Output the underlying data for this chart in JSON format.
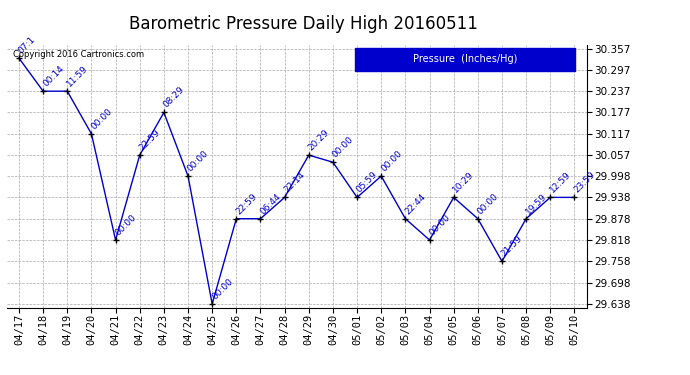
{
  "title": "Barometric Pressure Daily High 20160511",
  "copyright": "Copyright 2016 Cartronics.com",
  "legend_label": "Pressure  (Inches/Hg)",
  "x_labels": [
    "04/17",
    "04/18",
    "04/19",
    "04/20",
    "04/21",
    "04/22",
    "04/23",
    "04/24",
    "04/25",
    "04/26",
    "04/27",
    "04/28",
    "04/29",
    "04/30",
    "05/01",
    "05/02",
    "05/03",
    "05/04",
    "05/05",
    "05/06",
    "05/07",
    "05/08",
    "05/09",
    "05/10"
  ],
  "data_points": [
    {
      "date": "04/17",
      "value": 30.33,
      "label": "07:1"
    },
    {
      "date": "04/18",
      "value": 30.237,
      "label": "00:14"
    },
    {
      "date": "04/19",
      "value": 30.237,
      "label": "11:59"
    },
    {
      "date": "04/20",
      "value": 30.117,
      "label": "00:00"
    },
    {
      "date": "04/21",
      "value": 29.818,
      "label": "00:00"
    },
    {
      "date": "04/22",
      "value": 30.057,
      "label": "22:59"
    },
    {
      "date": "04/23",
      "value": 30.177,
      "label": "08:29"
    },
    {
      "date": "04/24",
      "value": 29.998,
      "label": "00:00"
    },
    {
      "date": "04/25",
      "value": 29.638,
      "label": "00:00"
    },
    {
      "date": "04/26",
      "value": 29.878,
      "label": "22:59"
    },
    {
      "date": "04/27",
      "value": 29.878,
      "label": "06:44"
    },
    {
      "date": "04/28",
      "value": 29.938,
      "label": "22:14"
    },
    {
      "date": "04/29",
      "value": 30.057,
      "label": "20:29"
    },
    {
      "date": "04/30",
      "value": 30.037,
      "label": "00:00"
    },
    {
      "date": "05/01",
      "value": 29.938,
      "label": "05:59"
    },
    {
      "date": "05/02",
      "value": 29.998,
      "label": "00:00"
    },
    {
      "date": "05/03",
      "value": 29.878,
      "label": "22:44"
    },
    {
      "date": "05/04",
      "value": 29.818,
      "label": "00:00"
    },
    {
      "date": "05/05",
      "value": 29.938,
      "label": "10:29"
    },
    {
      "date": "05/06",
      "value": 29.878,
      "label": "00:00"
    },
    {
      "date": "05/07",
      "value": 29.758,
      "label": "21:59"
    },
    {
      "date": "05/08",
      "value": 29.878,
      "label": "19:59"
    },
    {
      "date": "05/09",
      "value": 29.938,
      "label": "12:59"
    },
    {
      "date": "05/10",
      "value": 29.938,
      "label": "23:59"
    }
  ],
  "ylim_min": 29.628,
  "ylim_max": 30.367,
  "yticks": [
    29.638,
    29.698,
    29.758,
    29.818,
    29.878,
    29.938,
    29.998,
    30.057,
    30.117,
    30.177,
    30.237,
    30.297,
    30.357
  ],
  "line_color": "#0000CC",
  "marker_color": "#000000",
  "legend_box_color": "#0000CC",
  "background_color": "#ffffff",
  "grid_color": "#aaaaaa",
  "title_fontsize": 12,
  "label_fontsize": 6.5,
  "tick_fontsize": 7.5
}
